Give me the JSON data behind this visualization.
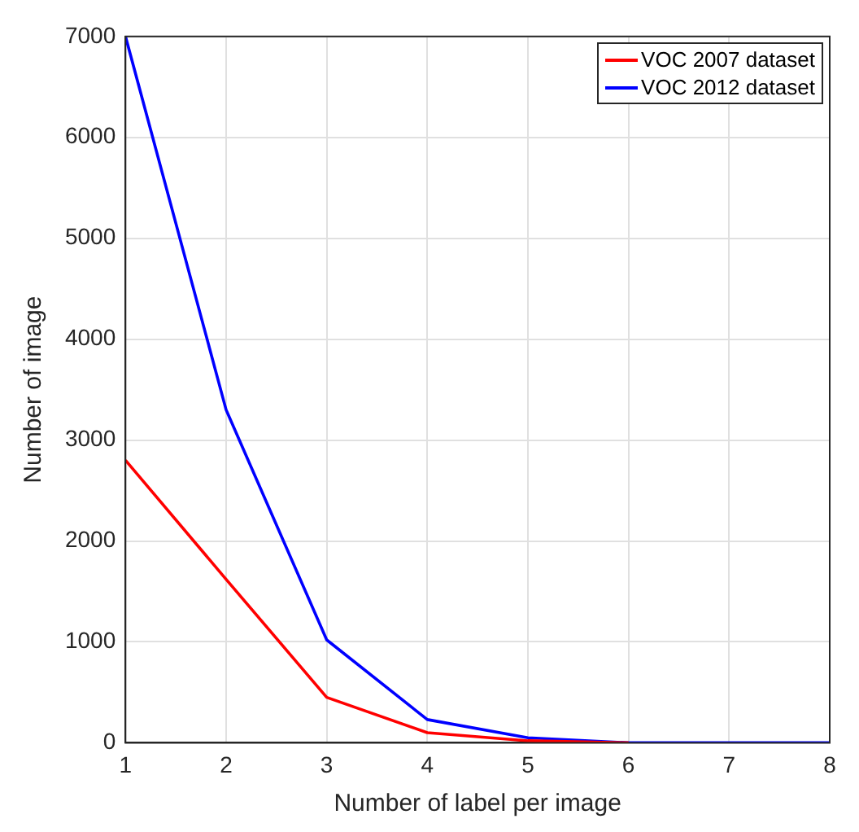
{
  "chart_data": {
    "type": "line",
    "xlabel": "Number of label per image",
    "ylabel": "Number of image",
    "x": [
      1,
      2,
      3,
      4,
      5,
      6,
      7,
      8
    ],
    "series": [
      {
        "name": "VOC 2007 dataset",
        "color": "#ff0000",
        "values": [
          2800,
          1620,
          450,
          100,
          20,
          0,
          null,
          null
        ]
      },
      {
        "name": "VOC 2012 dataset",
        "color": "#0000ff",
        "values": [
          7000,
          3300,
          1020,
          230,
          50,
          0,
          0,
          0
        ]
      }
    ],
    "xlim": [
      1,
      8
    ],
    "xticks": [
      1,
      2,
      3,
      4,
      5,
      6,
      7,
      8
    ],
    "ylim": [
      0,
      7000
    ],
    "yticks": [
      0,
      1000,
      2000,
      3000,
      4000,
      5000,
      6000,
      7000
    ],
    "grid": true,
    "legend": "top right",
    "marker": "none",
    "line_style": "solid"
  }
}
